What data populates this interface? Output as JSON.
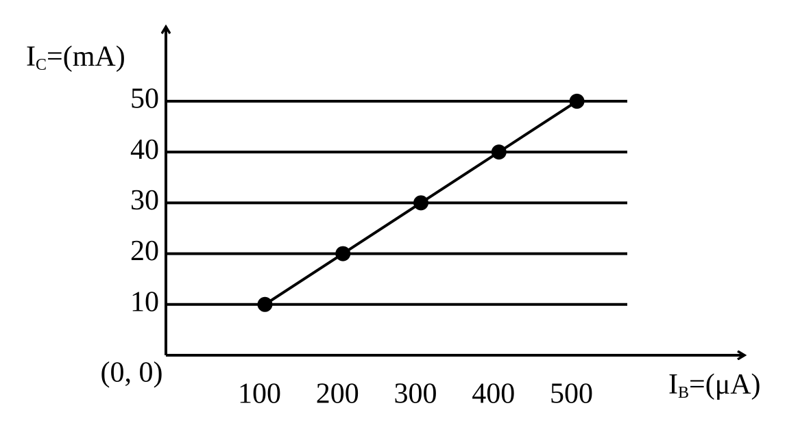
{
  "chart_data": {
    "type": "line",
    "y_label": [
      "I",
      "C",
      "=(mA)"
    ],
    "x_label": [
      "I",
      "B",
      "=(μA)"
    ],
    "origin_label": "(0, 0)",
    "x": [
      100,
      200,
      300,
      400,
      500
    ],
    "series": [
      {
        "color": "#000000",
        "values": [
          10,
          20,
          30,
          40,
          50
        ]
      }
    ],
    "xlim": [
      -27,
      714
    ],
    "xticks": [
      100,
      200,
      300,
      400,
      500
    ],
    "ylim": [
      0,
      64
    ],
    "yticks": [
      10,
      20,
      30,
      40,
      50
    ],
    "grid": true
  }
}
